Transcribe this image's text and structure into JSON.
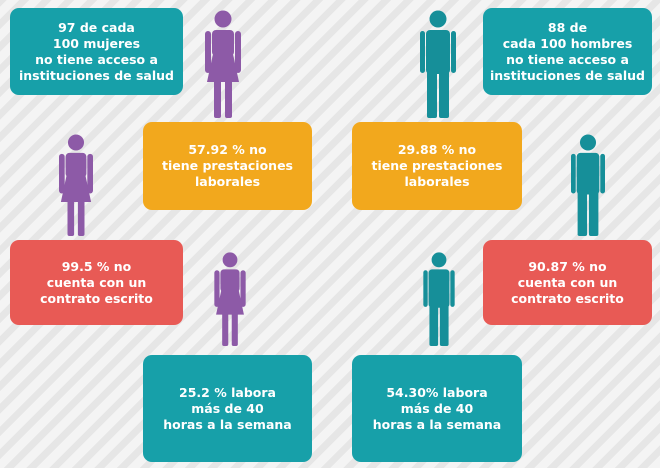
{
  "boxes": [
    {
      "lines": [
        "97 de cada",
        "100 mujeres",
        "no tiene acceso a",
        "instituciones de salud"
      ]
    },
    {
      "lines": [
        "57.92 % no",
        "tiene prestaciones",
        "laborales"
      ]
    },
    {
      "lines": [
        "99.5 % no",
        "cuenta con un",
        "contrato escrito"
      ]
    },
    {
      "lines": [
        "25.2 % labora",
        "más de 40",
        "horas a la semana"
      ]
    },
    {
      "lines": [
        "88 de",
        "cada 100 hombres",
        "no tiene acceso a",
        "instituciones de salud"
      ]
    },
    {
      "lines": [
        "29.88 % no",
        "tiene prestaciones",
        "laborales"
      ]
    },
    {
      "lines": [
        "90.87 % no",
        "cuenta con un",
        "contrato escrito"
      ]
    },
    {
      "lines": [
        "54.30% labora",
        "más de 40",
        "horas a la semana"
      ]
    }
  ]
}
